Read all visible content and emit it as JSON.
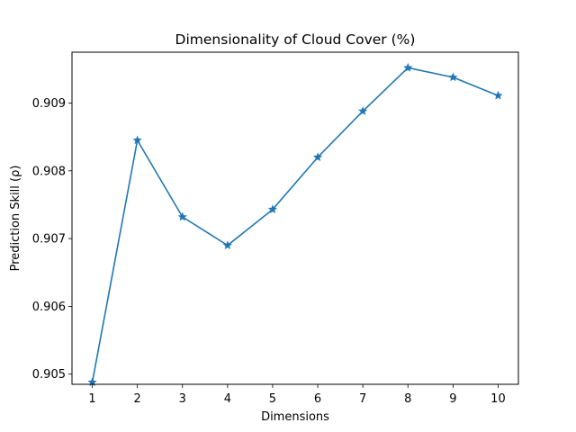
{
  "chart_data": {
    "type": "line",
    "title": "Dimensionality of Cloud Cover (%)",
    "xlabel": "Dimensions",
    "ylabel": "Prediction Skill (ρ)",
    "x": [
      1,
      2,
      3,
      4,
      5,
      6,
      7,
      8,
      9,
      10
    ],
    "x_tick_labels": [
      "1",
      "2",
      "3",
      "4",
      "5",
      "6",
      "7",
      "8",
      "9",
      "10"
    ],
    "series": [
      {
        "values": [
          0.90488,
          0.90845,
          0.90732,
          0.9069,
          0.90743,
          0.9082,
          0.90888,
          0.90952,
          0.90938,
          0.90911
        ],
        "color": "#1f77b4",
        "marker": "star"
      }
    ],
    "y_ticks": [
      0.905,
      0.906,
      0.907,
      0.908,
      0.909
    ],
    "y_tick_labels": [
      "0.905",
      "0.906",
      "0.907",
      "0.908",
      "0.909"
    ],
    "xlim": [
      0.55,
      10.45
    ],
    "ylim": [
      0.90485,
      0.90975
    ],
    "grid": false,
    "legend": "none"
  }
}
